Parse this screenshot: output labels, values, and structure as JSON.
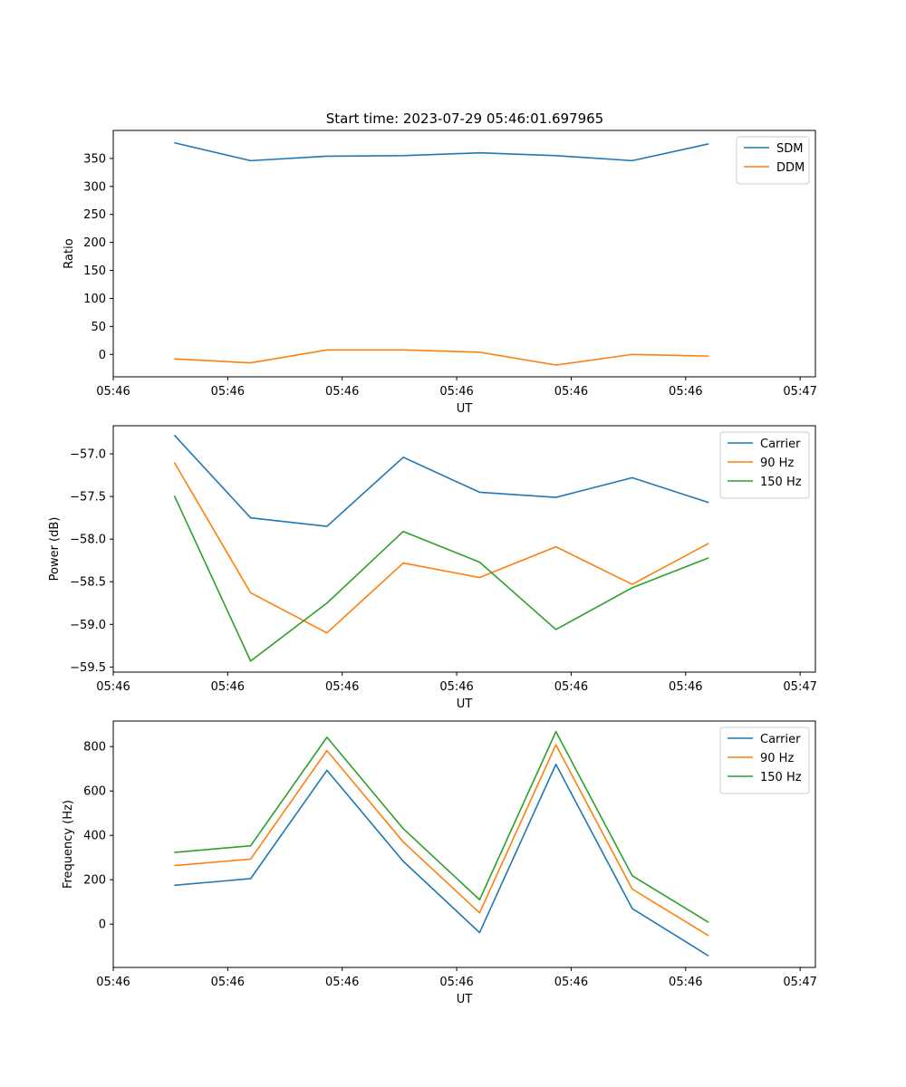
{
  "figure": {
    "title": "Start time: 2023-07-29 05:46:01.697965"
  },
  "chart_data": [
    {
      "type": "line",
      "xlabel": "UT",
      "ylabel": "Ratio",
      "x": [
        1,
        2,
        3,
        4,
        5,
        6,
        7,
        8
      ],
      "xlim": [
        0.2,
        9.4
      ],
      "xticks": [
        0.2,
        1.7,
        3.2,
        4.7,
        6.2,
        7.7,
        9.2
      ],
      "xtick_labels": [
        "05:46",
        "05:46",
        "05:46",
        "05:46",
        "05:46",
        "05:46",
        "05:47"
      ],
      "ylim": [
        -40,
        400
      ],
      "yticks": [
        0,
        50,
        100,
        150,
        200,
        250,
        300,
        350
      ],
      "ytick_labels": [
        "0",
        "50",
        "100",
        "150",
        "200",
        "250",
        "300",
        "350"
      ],
      "legend_position": "top-right",
      "series": [
        {
          "name": "SDM",
          "color": "#1f77b4",
          "values": [
            378,
            346,
            354,
            355,
            360,
            355,
            346,
            376
          ]
        },
        {
          "name": "DDM",
          "color": "#ff7f0e",
          "values": [
            -8,
            -15,
            8,
            8,
            4,
            -19,
            0,
            -3
          ]
        }
      ]
    },
    {
      "type": "line",
      "xlabel": "UT",
      "ylabel": "Power (dB)",
      "x": [
        1,
        2,
        3,
        4,
        5,
        6,
        7,
        8
      ],
      "xlim": [
        0.2,
        9.4
      ],
      "xticks": [
        0.2,
        1.7,
        3.2,
        4.7,
        6.2,
        7.7,
        9.2
      ],
      "xtick_labels": [
        "05:46",
        "05:46",
        "05:46",
        "05:46",
        "05:46",
        "05:46",
        "05:47"
      ],
      "ylim": [
        -59.56,
        -56.67
      ],
      "yticks": [
        -59.5,
        -59.0,
        -58.5,
        -58.0,
        -57.5,
        -57.0
      ],
      "ytick_labels": [
        "−59.5",
        "−59.0",
        "−58.5",
        "−58.0",
        "−57.5",
        "−57.0"
      ],
      "legend_position": "top-right",
      "series": [
        {
          "name": "Carrier",
          "color": "#1f77b4",
          "values": [
            -56.78,
            -57.75,
            -57.85,
            -57.04,
            -57.45,
            -57.51,
            -57.28,
            -57.57
          ]
        },
        {
          "name": "90 Hz",
          "color": "#ff7f0e",
          "values": [
            -57.1,
            -58.63,
            -59.1,
            -58.28,
            -58.45,
            -58.09,
            -58.53,
            -58.05
          ]
        },
        {
          "name": "150 Hz",
          "color": "#2ca02c",
          "values": [
            -57.49,
            -59.43,
            -58.75,
            -57.91,
            -58.27,
            -59.06,
            -58.57,
            -58.22
          ]
        }
      ]
    },
    {
      "type": "line",
      "xlabel": "UT",
      "ylabel": "Frequency (Hz)",
      "x": [
        1,
        2,
        3,
        4,
        5,
        6,
        7,
        8
      ],
      "xlim": [
        0.2,
        9.4
      ],
      "xticks": [
        0.2,
        1.7,
        3.2,
        4.7,
        6.2,
        7.7,
        9.2
      ],
      "xtick_labels": [
        "05:46",
        "05:46",
        "05:46",
        "05:46",
        "05:46",
        "05:46",
        "05:47"
      ],
      "ylim": [
        -195,
        915
      ],
      "yticks": [
        0,
        200,
        400,
        600,
        800
      ],
      "ytick_labels": [
        "0",
        "200",
        "400",
        "600",
        "800"
      ],
      "legend_position": "top-right",
      "series": [
        {
          "name": "Carrier",
          "color": "#1f77b4",
          "values": [
            175,
            205,
            693,
            283,
            -38,
            720,
            70,
            -143
          ]
        },
        {
          "name": "90 Hz",
          "color": "#ff7f0e",
          "values": [
            264,
            293,
            782,
            370,
            51,
            808,
            158,
            -52
          ]
        },
        {
          "name": "150 Hz",
          "color": "#2ca02c",
          "values": [
            323,
            353,
            842,
            430,
            110,
            867,
            218,
            8
          ]
        }
      ]
    }
  ]
}
